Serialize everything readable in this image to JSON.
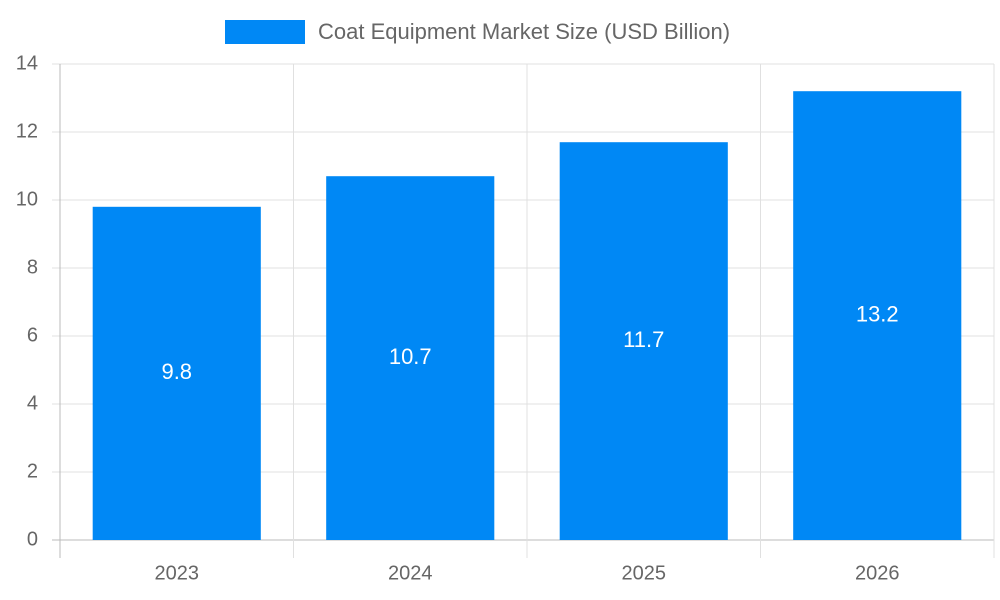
{
  "chart_data": {
    "type": "bar",
    "categories": [
      "2023",
      "2024",
      "2025",
      "2026"
    ],
    "series": [
      {
        "name": "Coat Equipment Market Size (USD Billion)",
        "color": "#0088f5",
        "values": [
          9.8,
          10.7,
          11.7,
          13.2
        ]
      }
    ],
    "ylim": [
      0,
      14
    ],
    "yticks": [
      0,
      2,
      4,
      6,
      8,
      10,
      12,
      14
    ],
    "grid": true,
    "legend": "top",
    "data_labels": true
  }
}
